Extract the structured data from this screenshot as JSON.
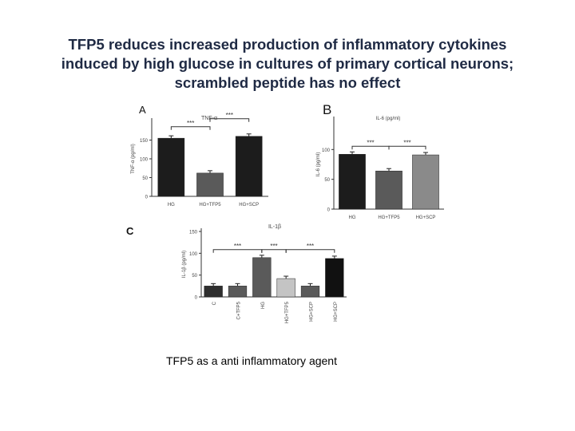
{
  "title_lines": [
    "TFP5 reduces increased production of inflammatory cytokines",
    "induced by high glucose in cultures of primary cortical neurons;",
    "scrambled peptide has no effect"
  ],
  "caption": "TFP5 as a anti inflammatory agent",
  "colors": {
    "title": "#1f2a44",
    "bar_dark": "#1c1c1c",
    "bar_mid": "#5a5a5a",
    "bar_light": "#b5b5b5"
  },
  "chart_data": [
    {
      "panel": "A",
      "type": "bar",
      "title": "TNF-α",
      "xlabel": "",
      "ylabel": "TNF-α (pg/ml)",
      "categories": [
        "HG",
        "HG+TFP5",
        "HG+SCP"
      ],
      "values": [
        155,
        62,
        160
      ],
      "ylim": [
        0,
        200
      ],
      "yticks": [
        0,
        50,
        100,
        150
      ],
      "colors": [
        "#1c1c1c",
        "#5a5a5a",
        "#1c1c1c"
      ],
      "significance": [
        {
          "from": 0,
          "to": 1,
          "label": "***"
        },
        {
          "from": 1,
          "to": 2,
          "label": "***"
        }
      ]
    },
    {
      "panel": "B",
      "type": "bar",
      "title": "IL-6 (pg/ml)",
      "xlabel": "",
      "ylabel": "IL-6 (pg/ml)",
      "categories": [
        "HG",
        "HG+TFP5",
        "HG+SCP"
      ],
      "values": [
        92,
        64,
        91
      ],
      "ylim": [
        0,
        150
      ],
      "yticks": [
        0,
        50,
        100
      ],
      "colors": [
        "#1c1c1c",
        "#5a5a5a",
        "#8a8a8a"
      ],
      "significance": [
        {
          "from": 0,
          "to": 1,
          "label": "***"
        },
        {
          "from": 1,
          "to": 2,
          "label": "***"
        }
      ]
    },
    {
      "panel": "C",
      "type": "bar",
      "title": "IL-1β",
      "xlabel": "",
      "ylabel": "IL-1β (pg/ml)",
      "categories": [
        "C",
        "C+TFP5",
        "HG",
        "HG+TFP5",
        "HG+SCP",
        "HG+SCP"
      ],
      "values": [
        25,
        25,
        90,
        42,
        25,
        88
      ],
      "ylim": [
        0,
        150
      ],
      "yticks": [
        0,
        50,
        100,
        150
      ],
      "colors": [
        "#2e2e2e",
        "#5a5a5a",
        "#5a5a5a",
        "#c4c4c4",
        "#5a5a5a",
        "#111111"
      ],
      "significance": [
        {
          "from": 0,
          "to": 2,
          "label": "***"
        },
        {
          "from": 2,
          "to": 3,
          "label": "***"
        },
        {
          "from": 3,
          "to": 5,
          "label": "***"
        }
      ]
    }
  ]
}
